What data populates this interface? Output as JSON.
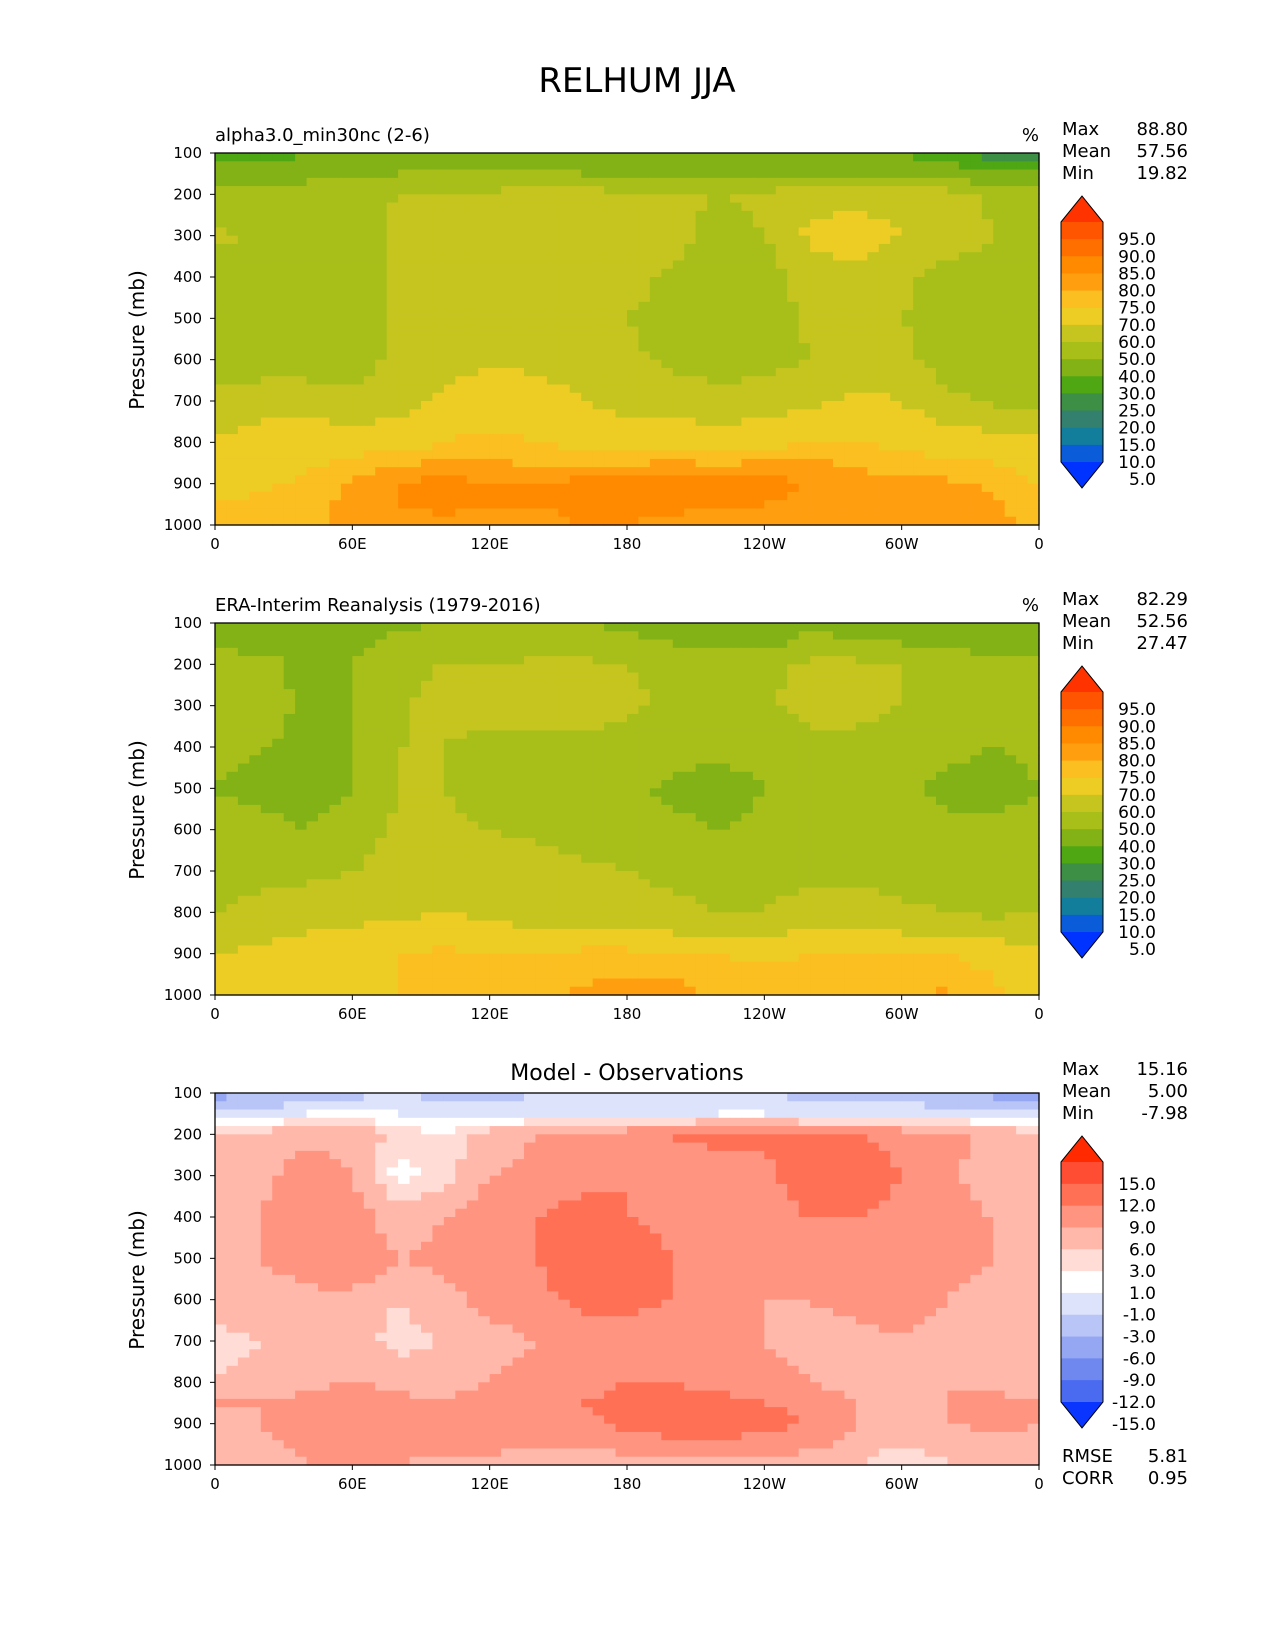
{
  "title": "RELHUM JJA",
  "x_ticks": [
    "0",
    "60E",
    "120E",
    "180",
    "120W",
    "60W",
    "0"
  ],
  "y_ticks": [
    "100",
    "200",
    "300",
    "400",
    "500",
    "600",
    "700",
    "800",
    "900",
    "1000"
  ],
  "ylabel": "Pressure (mb)",
  "stat_labels": {
    "max": "Max",
    "mean": "Mean",
    "min": "Min",
    "rmse": "RMSE",
    "corr": "CORR"
  },
  "colorbars": {
    "relhum": {
      "labels": [
        "95.0",
        "90.0",
        "85.0",
        "80.0",
        "75.0",
        "70.0",
        "60.0",
        "50.0",
        "40.0",
        "30.0",
        "25.0",
        "20.0",
        "15.0",
        "10.0",
        "5.0"
      ],
      "colors": [
        "#ff3300",
        "#ff5500",
        "#ff6f00",
        "#ff8a00",
        "#ff9f10",
        "#fbbf21",
        "#edcc24",
        "#c6c51f",
        "#a8bf1a",
        "#82b216",
        "#4ea713",
        "#3c8f44",
        "#34806e",
        "#137e9c",
        "#0a5cd8",
        "#0033ff"
      ]
    },
    "diff": {
      "labels": [
        "15.0",
        "12.0",
        "9.0",
        "6.0",
        "3.0",
        "1.0",
        "-1.0",
        "-3.0",
        "-6.0",
        "-9.0",
        "-12.0",
        "-15.0"
      ],
      "colors": [
        "#ff2a00",
        "#ff4d33",
        "#ff7055",
        "#ff9480",
        "#ffb8aa",
        "#ffdcd5",
        "#ffffff",
        "#dde3fb",
        "#b9c5f7",
        "#95a7f3",
        "#6f88f0",
        "#4a6af0",
        "#0a35ff"
      ]
    }
  },
  "panels": [
    {
      "left_title": "alpha3.0_min30nc (2-6)",
      "center_title": "",
      "units": "%",
      "stats": {
        "max": "88.80",
        "mean": "57.56",
        "min": "19.82"
      }
    },
    {
      "left_title": "ERA-Interim Reanalysis (1979-2016)",
      "center_title": "",
      "units": "%",
      "stats": {
        "max": "82.29",
        "mean": "52.56",
        "min": "27.47"
      }
    },
    {
      "left_title": "",
      "center_title": "Model - Observations",
      "units": "",
      "stats": {
        "max": "15.16",
        "mean": "5.00",
        "min": "-7.98",
        "rmse": "5.81",
        "corr": "0.95"
      }
    }
  ],
  "chart_data": [
    {
      "type": "heatmap",
      "title": "alpha3.0_min30nc (2-6)",
      "units": "%",
      "xlabel": "",
      "ylabel": "Pressure (mb)",
      "xlim": [
        0,
        360
      ],
      "ylim": [
        1000,
        100
      ],
      "levels": [
        5,
        10,
        15,
        20,
        25,
        30,
        40,
        50,
        60,
        70,
        75,
        80,
        85,
        90,
        95
      ],
      "x": [
        0,
        20,
        40,
        60,
        80,
        100,
        120,
        140,
        160,
        180,
        200,
        220,
        240,
        260,
        280,
        300,
        320,
        340,
        360
      ],
      "y": [
        100,
        150,
        200,
        300,
        400,
        500,
        600,
        700,
        800,
        850,
        900,
        950,
        1000
      ],
      "z": [
        [
          28,
          26,
          30,
          34,
          36,
          36,
          36,
          38,
          36,
          34,
          32,
          30,
          32,
          34,
          32,
          30,
          26,
          22,
          22
        ],
        [
          32,
          34,
          36,
          38,
          40,
          40,
          40,
          40,
          40,
          38,
          38,
          36,
          36,
          38,
          38,
          36,
          34,
          32,
          32
        ],
        [
          44,
          44,
          46,
          48,
          50,
          52,
          52,
          54,
          54,
          52,
          52,
          50,
          52,
          56,
          58,
          56,
          54,
          48,
          44
        ],
        [
          52,
          48,
          46,
          44,
          52,
          56,
          58,
          58,
          58,
          56,
          54,
          46,
          50,
          62,
          64,
          60,
          56,
          50,
          48
        ],
        [
          46,
          46,
          46,
          46,
          52,
          56,
          58,
          58,
          56,
          54,
          48,
          42,
          44,
          56,
          58,
          52,
          46,
          46,
          46
        ],
        [
          46,
          44,
          44,
          46,
          52,
          54,
          56,
          56,
          54,
          50,
          46,
          42,
          44,
          52,
          56,
          50,
          46,
          46,
          46
        ],
        [
          46,
          44,
          44,
          46,
          52,
          56,
          58,
          58,
          56,
          52,
          48,
          44,
          46,
          50,
          56,
          52,
          46,
          46,
          46
        ],
        [
          52,
          56,
          56,
          52,
          56,
          62,
          66,
          64,
          60,
          56,
          56,
          54,
          56,
          58,
          62,
          60,
          52,
          48,
          48
        ],
        [
          62,
          64,
          66,
          66,
          66,
          70,
          72,
          70,
          68,
          66,
          66,
          64,
          66,
          70,
          70,
          68,
          66,
          64,
          62
        ],
        [
          64,
          66,
          68,
          72,
          74,
          76,
          76,
          74,
          74,
          74,
          76,
          74,
          76,
          76,
          74,
          72,
          72,
          70,
          66
        ],
        [
          66,
          68,
          72,
          76,
          80,
          82,
          80,
          80,
          82,
          82,
          84,
          82,
          82,
          80,
          78,
          76,
          76,
          74,
          70
        ],
        [
          70,
          72,
          74,
          76,
          80,
          82,
          80,
          80,
          82,
          82,
          82,
          80,
          80,
          78,
          78,
          76,
          76,
          76,
          72
        ],
        [
          70,
          74,
          74,
          76,
          78,
          78,
          78,
          78,
          80,
          80,
          78,
          76,
          78,
          76,
          76,
          76,
          76,
          76,
          74
        ]
      ]
    },
    {
      "type": "heatmap",
      "title": "ERA-Interim Reanalysis (1979-2016)",
      "units": "%",
      "xlabel": "",
      "ylabel": "Pressure (mb)",
      "xlim": [
        0,
        360
      ],
      "ylim": [
        1000,
        100
      ],
      "levels": [
        5,
        10,
        15,
        20,
        25,
        30,
        40,
        50,
        60,
        70,
        75,
        80,
        85,
        90,
        95
      ],
      "x": [
        0,
        20,
        40,
        60,
        80,
        100,
        120,
        140,
        160,
        180,
        200,
        220,
        240,
        260,
        280,
        300,
        320,
        340,
        360
      ],
      "y": [
        100,
        150,
        200,
        300,
        400,
        500,
        600,
        700,
        800,
        850,
        900,
        950,
        1000
      ],
      "z": [
        [
          34,
          34,
          34,
          36,
          38,
          40,
          40,
          40,
          40,
          38,
          36,
          34,
          36,
          38,
          36,
          34,
          32,
          30,
          30
        ],
        [
          38,
          38,
          38,
          38,
          42,
          44,
          44,
          44,
          44,
          42,
          40,
          38,
          38,
          42,
          42,
          40,
          38,
          36,
          36
        ],
        [
          44,
          42,
          38,
          40,
          48,
          50,
          50,
          52,
          52,
          50,
          48,
          46,
          48,
          52,
          52,
          50,
          46,
          44,
          44
        ],
        [
          48,
          44,
          38,
          40,
          48,
          54,
          54,
          54,
          54,
          52,
          48,
          46,
          48,
          54,
          54,
          50,
          46,
          44,
          44
        ],
        [
          42,
          40,
          38,
          40,
          50,
          50,
          46,
          46,
          48,
          46,
          44,
          42,
          44,
          46,
          46,
          44,
          42,
          40,
          42
        ],
        [
          40,
          38,
          36,
          40,
          50,
          50,
          46,
          44,
          44,
          42,
          38,
          36,
          40,
          44,
          44,
          42,
          38,
          36,
          40
        ],
        [
          42,
          42,
          40,
          44,
          52,
          52,
          50,
          48,
          46,
          44,
          42,
          40,
          42,
          44,
          46,
          44,
          42,
          42,
          44
        ],
        [
          46,
          48,
          48,
          50,
          54,
          56,
          56,
          54,
          52,
          50,
          48,
          46,
          46,
          48,
          48,
          46,
          44,
          44,
          46
        ],
        [
          50,
          52,
          54,
          56,
          58,
          60,
          58,
          56,
          56,
          54,
          52,
          50,
          50,
          54,
          54,
          52,
          50,
          48,
          50
        ],
        [
          56,
          58,
          60,
          62,
          64,
          64,
          62,
          62,
          62,
          62,
          60,
          58,
          58,
          62,
          62,
          60,
          58,
          56,
          56
        ],
        [
          60,
          62,
          64,
          66,
          70,
          72,
          70,
          70,
          72,
          72,
          72,
          70,
          68,
          70,
          70,
          70,
          70,
          68,
          62
        ],
        [
          64,
          66,
          66,
          68,
          70,
          72,
          70,
          72,
          74,
          74,
          74,
          72,
          72,
          72,
          72,
          72,
          72,
          70,
          64
        ],
        [
          66,
          66,
          66,
          68,
          70,
          70,
          70,
          72,
          76,
          78,
          78,
          74,
          72,
          72,
          72,
          74,
          76,
          72,
          64
        ]
      ]
    },
    {
      "type": "heatmap",
      "title": "Model - Observations",
      "units": "",
      "xlabel": "",
      "ylabel": "Pressure (mb)",
      "xlim": [
        0,
        360
      ],
      "ylim": [
        1000,
        100
      ],
      "levels": [
        -15,
        -12,
        -9,
        -6,
        -3,
        -1,
        1,
        3,
        6,
        9,
        12,
        15
      ],
      "x": [
        0,
        20,
        40,
        60,
        80,
        100,
        120,
        140,
        160,
        180,
        200,
        220,
        240,
        260,
        280,
        300,
        320,
        340,
        360
      ],
      "y": [
        100,
        150,
        200,
        300,
        400,
        500,
        600,
        700,
        800,
        850,
        900,
        950,
        1000
      ],
      "z": [
        [
          -7,
          -6,
          -5,
          -4,
          -3,
          -4,
          -4,
          -3,
          -3,
          -3,
          -3,
          -3,
          -3,
          -4,
          -4,
          -4,
          -5,
          -7,
          -7
        ],
        [
          -3,
          -2,
          -1,
          0,
          -1,
          -2,
          -2,
          -2,
          -2,
          -2,
          -2,
          -1,
          -1,
          -2,
          -2,
          -2,
          -2,
          -3,
          -3
        ],
        [
          3,
          4,
          5,
          5,
          2,
          1,
          4,
          6,
          7,
          8,
          9,
          10,
          10,
          10,
          9,
          8,
          7,
          5,
          4
        ],
        [
          3,
          5,
          8,
          6,
          0,
          2,
          6,
          7,
          8,
          9,
          8,
          7,
          8,
          11,
          11,
          9,
          7,
          4,
          3
        ],
        [
          5,
          6,
          9,
          8,
          4,
          6,
          8,
          9,
          10,
          9,
          8,
          7,
          8,
          9,
          9,
          8,
          7,
          6,
          5
        ],
        [
          6,
          6,
          8,
          9,
          6,
          7,
          8,
          9,
          11,
          11,
          9,
          8,
          8,
          8,
          8,
          8,
          7,
          6,
          6
        ],
        [
          5,
          4,
          5,
          5,
          3,
          5,
          7,
          8,
          10,
          10,
          9,
          7,
          6,
          6,
          7,
          7,
          6,
          5,
          5
        ],
        [
          2,
          3,
          4,
          4,
          2,
          3,
          5,
          6,
          7,
          7,
          7,
          7,
          6,
          5,
          5,
          6,
          5,
          4,
          3
        ],
        [
          3,
          4,
          5,
          6,
          5,
          5,
          6,
          7,
          8,
          9,
          9,
          8,
          7,
          6,
          5,
          5,
          6,
          5,
          4
        ],
        [
          6,
          6,
          7,
          8,
          7,
          6,
          8,
          8,
          9,
          10,
          10,
          10,
          9,
          8,
          6,
          5,
          6,
          7,
          6
        ],
        [
          5,
          6,
          8,
          9,
          9,
          8,
          8,
          7,
          8,
          10,
          11,
          11,
          10,
          9,
          6,
          4,
          6,
          7,
          6
        ],
        [
          4,
          5,
          7,
          8,
          8,
          8,
          7,
          6,
          6,
          7,
          8,
          8,
          8,
          7,
          5,
          3,
          4,
          5,
          5
        ],
        [
          3,
          4,
          6,
          8,
          6,
          4,
          5,
          4,
          4,
          5,
          5,
          5,
          5,
          4,
          3,
          1,
          3,
          3,
          4
        ]
      ]
    }
  ]
}
